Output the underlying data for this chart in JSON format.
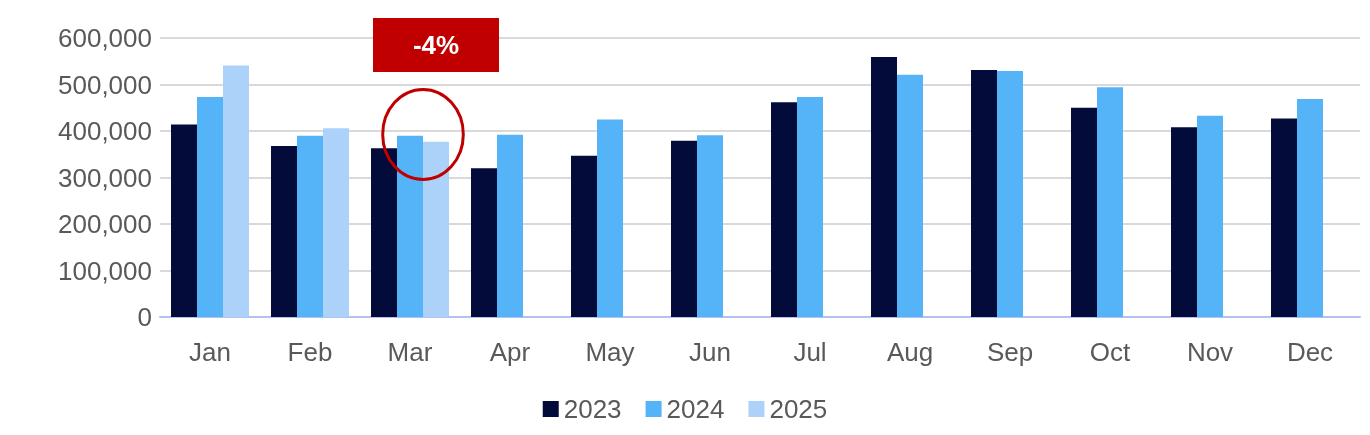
{
  "chart_data": {
    "type": "bar",
    "categories": [
      "Jan",
      "Feb",
      "Mar",
      "Apr",
      "May",
      "Jun",
      "Jul",
      "Aug",
      "Sep",
      "Oct",
      "Nov",
      "Dec"
    ],
    "series": [
      {
        "name": "2023",
        "color": "#020b3a",
        "values": [
          414000,
          368000,
          363000,
          320000,
          347000,
          379000,
          462000,
          559000,
          531000,
          450000,
          408000,
          427000
        ]
      },
      {
        "name": "2024",
        "color": "#55b3f8",
        "values": [
          473000,
          390000,
          390000,
          392000,
          425000,
          391000,
          473000,
          521000,
          529000,
          494000,
          433000,
          469000
        ]
      },
      {
        "name": "2025",
        "color": "#acd2fa",
        "values": [
          541000,
          406000,
          377000,
          null,
          null,
          null,
          null,
          null,
          null,
          null,
          null,
          null
        ]
      }
    ],
    "ylim": [
      0,
      600000
    ],
    "yticks": [
      0,
      {
        "value": 100000,
        "label": "100,000"
      },
      {
        "value": 200000,
        "label": "200,000"
      },
      {
        "value": 300000,
        "label": "300,000"
      },
      {
        "value": 400000,
        "label": "400,000"
      },
      {
        "value": 500000,
        "label": "500,000"
      },
      {
        "value": 600000,
        "label": "600,000"
      }
    ],
    "grid": "y",
    "legend": "bottom",
    "annotations": [
      "-4%"
    ]
  }
}
